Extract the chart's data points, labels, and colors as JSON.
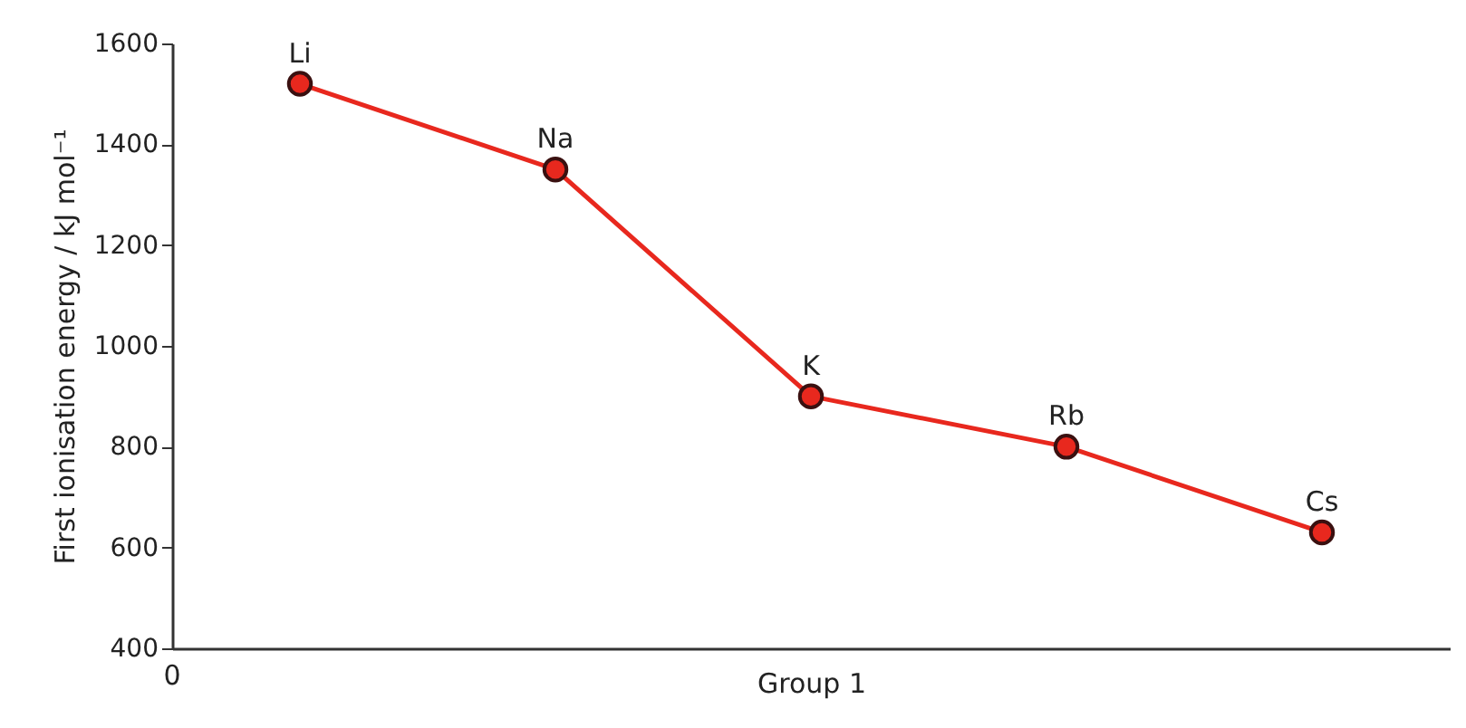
{
  "chart_data": {
    "type": "line",
    "xlabel": "Group 1",
    "ylabel": "First ionisation energy / kJ mol⁻¹",
    "categories": [
      "Li",
      "Na",
      "K",
      "Rb",
      "Cs"
    ],
    "series": [
      {
        "color": "#e8281e",
        "values": [
          1520,
          1350,
          900,
          800,
          630
        ]
      }
    ],
    "ylim": [
      400,
      1600
    ],
    "yticks": [
      400,
      600,
      800,
      1000,
      1200,
      1400,
      1600
    ],
    "annotations": [
      "0"
    ],
    "tick_labels": "y",
    "grid": false,
    "marker": "circle",
    "line_style": "solid"
  }
}
